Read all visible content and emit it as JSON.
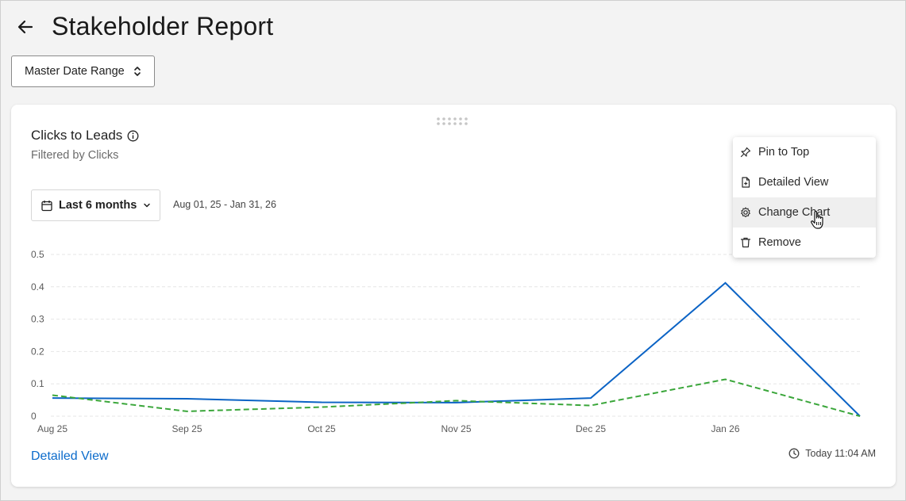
{
  "header": {
    "title": "Stakeholder Report"
  },
  "toolbar": {
    "master_date_range_label": "Master Date Range"
  },
  "card": {
    "title": "Clicks to Leads",
    "subtitle": "Filtered by Clicks",
    "period_label": "Last 6 months",
    "period_range": "Aug 01, 25 - Jan 31, 26",
    "detailed_view_link": "Detailed View",
    "updated_text": "Today 11:04 AM"
  },
  "menu": {
    "items": [
      {
        "label": "Pin to Top",
        "icon": "pin-icon"
      },
      {
        "label": "Detailed View",
        "icon": "document-icon"
      },
      {
        "label": "Change Chart",
        "icon": "gear-icon"
      },
      {
        "label": "Remove",
        "icon": "trash-icon"
      }
    ]
  },
  "chart_data": {
    "type": "line",
    "x": [
      "Aug 25",
      "Sep 25",
      "Oct 25",
      "Nov 25",
      "Dec 25",
      "Jan 26",
      ""
    ],
    "x_tick_labels": [
      "Aug 25",
      "Sep 25",
      "Oct 25",
      "Nov 25",
      "Dec 25",
      "Jan 26"
    ],
    "y_tick_labels": [
      "0",
      "0.1",
      "0.2",
      "0.3",
      "0.4",
      "0.5"
    ],
    "ylim": [
      0,
      0.5
    ],
    "grid": true,
    "series": [
      {
        "values": [
          0.056,
          0.054,
          0.043,
          0.042,
          0.056,
          0.412,
          0.0
        ],
        "color": "#0b63c5",
        "style": "solid"
      },
      {
        "values": [
          0.065,
          0.015,
          0.028,
          0.048,
          0.033,
          0.114,
          0.0
        ],
        "color": "#3aa63a",
        "style": "dashed"
      }
    ]
  }
}
